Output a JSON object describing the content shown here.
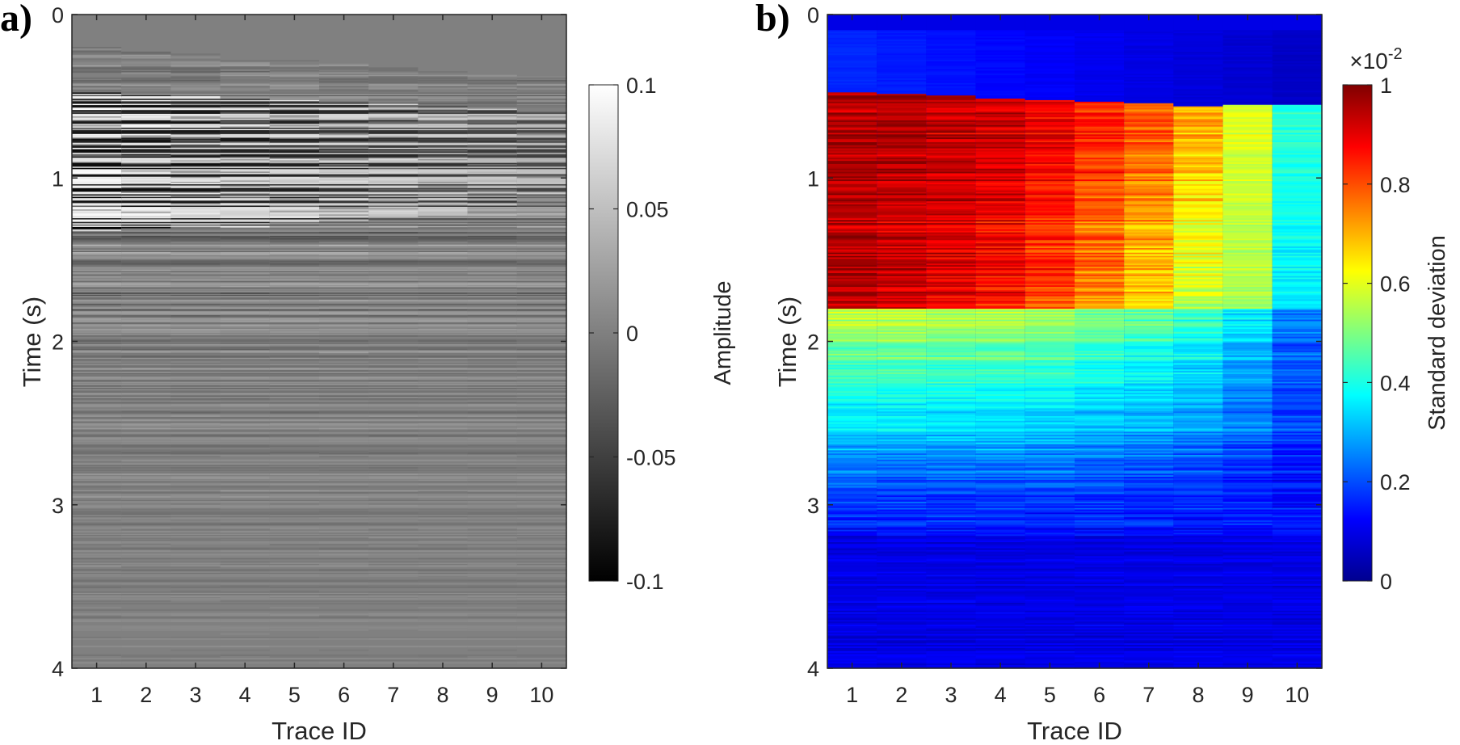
{
  "chart_data": [
    {
      "panel_label": "a)",
      "type": "heatmap",
      "xlabel": "Trace ID",
      "ylabel": "Time (s)",
      "x_ticks": [
        "1",
        "2",
        "3",
        "4",
        "5",
        "6",
        "7",
        "8",
        "9",
        "10"
      ],
      "y_ticks": [
        "0",
        "1",
        "2",
        "3",
        "4"
      ],
      "xlim": [
        0.5,
        10.5
      ],
      "ylim": [
        0,
        4
      ],
      "y_reversed": true,
      "colormap": "gray",
      "colorbar": {
        "label": "Amplitude",
        "ticks": [
          "0.1",
          "0.05",
          "0",
          "-0.05",
          "-0.1"
        ],
        "range": [
          -0.1,
          0.1
        ]
      },
      "first_arrival_s": [
        0.2,
        0.22,
        0.24,
        0.26,
        0.28,
        0.3,
        0.32,
        0.34,
        0.36,
        0.38
      ],
      "strong_arrival_s": [
        0.48,
        0.49,
        0.5,
        0.51,
        0.52,
        0.54,
        0.55,
        0.56,
        0.58,
        0.6
      ],
      "strong_energy_end_s": [
        1.32,
        1.31,
        1.3,
        1.3,
        1.28,
        1.26,
        1.24,
        1.22,
        1.18,
        1.1
      ]
    },
    {
      "panel_label": "b)",
      "type": "heatmap",
      "xlabel": "Trace ID",
      "ylabel": "Time (s)",
      "x_ticks": [
        "1",
        "2",
        "3",
        "4",
        "5",
        "6",
        "7",
        "8",
        "9",
        "10"
      ],
      "y_ticks": [
        "0",
        "1",
        "2",
        "3",
        "4"
      ],
      "xlim": [
        0.5,
        10.5
      ],
      "ylim": [
        0,
        4
      ],
      "y_reversed": true,
      "colormap": "jet",
      "colorbar": {
        "label": "Standard deviation",
        "exponent_label": "×10",
        "exponent": "-2",
        "ticks": [
          "1",
          "0.8",
          "0.6",
          "0.4",
          "0.2",
          "0"
        ],
        "range": [
          0,
          1
        ]
      },
      "onset_s": [
        0.48,
        0.49,
        0.5,
        0.51,
        0.52,
        0.53,
        0.54,
        0.56,
        0.55,
        0.55
      ],
      "peak_std_x1e-2": [
        0.95,
        0.95,
        0.94,
        0.93,
        0.9,
        0.85,
        0.8,
        0.72,
        0.6,
        0.42
      ]
    }
  ]
}
